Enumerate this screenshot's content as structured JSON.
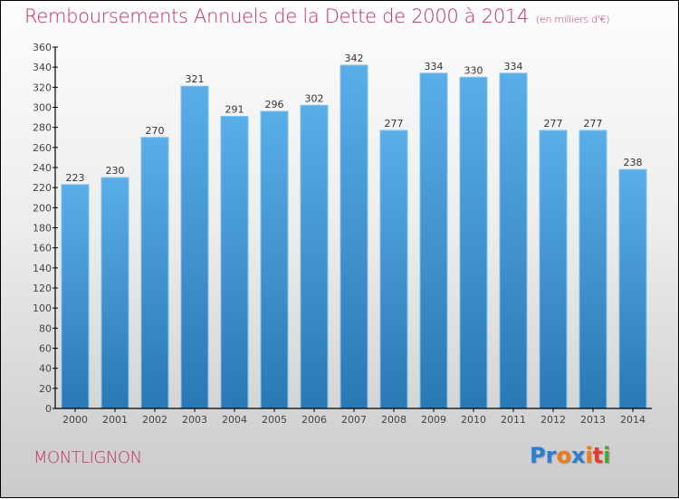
{
  "chart_data": {
    "type": "bar",
    "title": "Remboursements Annuels de la Dette de 2000 à 2014",
    "unit_note": "(en milliers d'€)",
    "categories": [
      "2000",
      "2001",
      "2002",
      "2003",
      "2004",
      "2005",
      "2006",
      "2007",
      "2008",
      "2009",
      "2010",
      "2011",
      "2012",
      "2013",
      "2014"
    ],
    "values": [
      223,
      230,
      270,
      321,
      291,
      296,
      302,
      342,
      277,
      334,
      330,
      334,
      277,
      277,
      238
    ],
    "xlabel": "",
    "ylabel": "",
    "ylim": [
      0,
      360
    ],
    "yticks": [
      0,
      20,
      40,
      60,
      80,
      100,
      120,
      140,
      160,
      180,
      200,
      220,
      240,
      260,
      280,
      300,
      320,
      340,
      360
    ],
    "grid": false,
    "legend": "none",
    "bar_color_top": "#5aaee8",
    "bar_color_bottom": "#2a78b4"
  },
  "footer": {
    "city": "MONTLIGNON",
    "logo_letters": [
      {
        "char": "P",
        "color": "#2a7fd4"
      },
      {
        "char": "r",
        "color": "#2a7fd4"
      },
      {
        "char": "o",
        "color": "#f07a1a"
      },
      {
        "char": "x",
        "color": "#2a7fd4"
      },
      {
        "char": "i",
        "color": "#f07a1a"
      },
      {
        "char": "t",
        "color": "#e83a2a"
      },
      {
        "char": "i",
        "color": "#4aa830"
      }
    ]
  },
  "colors": {
    "title": "#c0305e",
    "axis": "#000000"
  }
}
